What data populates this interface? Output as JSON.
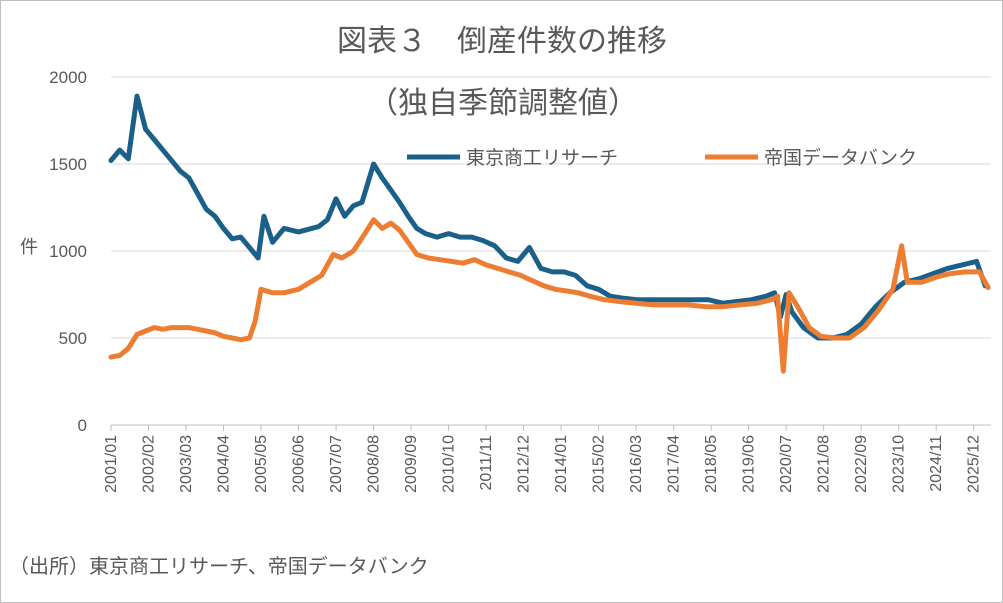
{
  "title": "図表３　倒産件数の推移",
  "subtitle": "（独自季節調整値）",
  "source_note": "（出所）東京商工リサーチ、帝国データバンク",
  "colors": {
    "tsr": "#1b6088",
    "tdb": "#ed7d31",
    "text": "#595959",
    "grid": "#d9d9d9"
  },
  "chart_data": {
    "type": "line",
    "ylabel": "件",
    "ylim": [
      0,
      2000
    ],
    "yticks": [
      "0",
      "500",
      "1000",
      "1500",
      "2000"
    ],
    "x_start": "2001-01",
    "x_end": "2026-06",
    "xticks": [
      "2001/01",
      "2002/02",
      "2003/03",
      "2004/04",
      "2005/05",
      "2006/06",
      "2007/07",
      "2008/08",
      "2009/09",
      "2010/10",
      "2011/11",
      "2012/12",
      "2014/01",
      "2015/02",
      "2016/03",
      "2017/04",
      "2018/05",
      "2019/06",
      "2020/07",
      "2021/08",
      "2022/09",
      "2023/10",
      "2024/11",
      "2025/12"
    ],
    "legend": "top-right",
    "series": [
      {
        "name": "東京商工リサーチ",
        "color": "#1b6088",
        "points": [
          [
            "2001-01",
            1520
          ],
          [
            "2001-04",
            1580
          ],
          [
            "2001-07",
            1530
          ],
          [
            "2001-10",
            1890
          ],
          [
            "2002-01",
            1700
          ],
          [
            "2002-04",
            1640
          ],
          [
            "2002-07",
            1580
          ],
          [
            "2002-10",
            1520
          ],
          [
            "2003-01",
            1460
          ],
          [
            "2003-04",
            1420
          ],
          [
            "2003-07",
            1330
          ],
          [
            "2003-10",
            1240
          ],
          [
            "2004-01",
            1200
          ],
          [
            "2004-04",
            1130
          ],
          [
            "2004-07",
            1070
          ],
          [
            "2004-10",
            1080
          ],
          [
            "2005-01",
            1020
          ],
          [
            "2005-04",
            960
          ],
          [
            "2005-06",
            1200
          ],
          [
            "2005-09",
            1050
          ],
          [
            "2006-01",
            1130
          ],
          [
            "2006-06",
            1110
          ],
          [
            "2007-01",
            1140
          ],
          [
            "2007-04",
            1180
          ],
          [
            "2007-07",
            1300
          ],
          [
            "2007-10",
            1200
          ],
          [
            "2008-01",
            1260
          ],
          [
            "2008-04",
            1280
          ],
          [
            "2008-08",
            1500
          ],
          [
            "2008-11",
            1420
          ],
          [
            "2009-02",
            1350
          ],
          [
            "2009-05",
            1280
          ],
          [
            "2009-08",
            1200
          ],
          [
            "2009-11",
            1130
          ],
          [
            "2010-02",
            1100
          ],
          [
            "2010-06",
            1080
          ],
          [
            "2010-10",
            1100
          ],
          [
            "2011-02",
            1080
          ],
          [
            "2011-06",
            1080
          ],
          [
            "2011-10",
            1060
          ],
          [
            "2012-02",
            1030
          ],
          [
            "2012-06",
            960
          ],
          [
            "2012-10",
            940
          ],
          [
            "2013-02",
            1020
          ],
          [
            "2013-06",
            900
          ],
          [
            "2013-10",
            880
          ],
          [
            "2014-02",
            880
          ],
          [
            "2014-06",
            860
          ],
          [
            "2014-10",
            800
          ],
          [
            "2015-02",
            780
          ],
          [
            "2015-06",
            740
          ],
          [
            "2015-10",
            730
          ],
          [
            "2016-03",
            720
          ],
          [
            "2016-08",
            720
          ],
          [
            "2017-01",
            720
          ],
          [
            "2017-06",
            720
          ],
          [
            "2017-11",
            720
          ],
          [
            "2018-04",
            720
          ],
          [
            "2018-09",
            700
          ],
          [
            "2019-02",
            710
          ],
          [
            "2019-07",
            720
          ],
          [
            "2019-12",
            740
          ],
          [
            "2020-03",
            760
          ],
          [
            "2020-05",
            620
          ],
          [
            "2020-07",
            750
          ],
          [
            "2020-09",
            650
          ],
          [
            "2021-01",
            560
          ],
          [
            "2021-06",
            500
          ],
          [
            "2021-11",
            500
          ],
          [
            "2022-04",
            520
          ],
          [
            "2022-09",
            580
          ],
          [
            "2023-02",
            680
          ],
          [
            "2023-07",
            760
          ],
          [
            "2023-12",
            820
          ],
          [
            "2024-05",
            840
          ],
          [
            "2024-10",
            870
          ],
          [
            "2025-03",
            900
          ],
          [
            "2025-08",
            920
          ],
          [
            "2026-01",
            940
          ],
          [
            "2026-04",
            800
          ]
        ]
      },
      {
        "name": "帝国データバンク",
        "color": "#ed7d31",
        "points": [
          [
            "2001-01",
            390
          ],
          [
            "2001-04",
            400
          ],
          [
            "2001-07",
            440
          ],
          [
            "2001-10",
            520
          ],
          [
            "2002-01",
            540
          ],
          [
            "2002-04",
            560
          ],
          [
            "2002-07",
            550
          ],
          [
            "2002-10",
            560
          ],
          [
            "2003-01",
            560
          ],
          [
            "2003-04",
            560
          ],
          [
            "2003-07",
            550
          ],
          [
            "2003-10",
            540
          ],
          [
            "2004-01",
            530
          ],
          [
            "2004-04",
            510
          ],
          [
            "2004-07",
            500
          ],
          [
            "2004-10",
            490
          ],
          [
            "2005-01",
            500
          ],
          [
            "2005-03",
            600
          ],
          [
            "2005-05",
            780
          ],
          [
            "2005-09",
            760
          ],
          [
            "2006-01",
            760
          ],
          [
            "2006-06",
            780
          ],
          [
            "2006-10",
            820
          ],
          [
            "2007-02",
            860
          ],
          [
            "2007-06",
            980
          ],
          [
            "2007-09",
            960
          ],
          [
            "2008-01",
            1000
          ],
          [
            "2008-05",
            1100
          ],
          [
            "2008-08",
            1180
          ],
          [
            "2008-11",
            1130
          ],
          [
            "2009-02",
            1160
          ],
          [
            "2009-05",
            1120
          ],
          [
            "2009-08",
            1050
          ],
          [
            "2009-11",
            980
          ],
          [
            "2010-03",
            960
          ],
          [
            "2010-07",
            950
          ],
          [
            "2010-11",
            940
          ],
          [
            "2011-03",
            930
          ],
          [
            "2011-07",
            950
          ],
          [
            "2011-11",
            920
          ],
          [
            "2012-03",
            900
          ],
          [
            "2012-07",
            880
          ],
          [
            "2012-11",
            860
          ],
          [
            "2013-03",
            830
          ],
          [
            "2013-07",
            800
          ],
          [
            "2013-11",
            780
          ],
          [
            "2014-03",
            770
          ],
          [
            "2014-07",
            760
          ],
          [
            "2014-11",
            740
          ],
          [
            "2015-04",
            720
          ],
          [
            "2015-09",
            710
          ],
          [
            "2016-03",
            700
          ],
          [
            "2016-09",
            690
          ],
          [
            "2017-03",
            690
          ],
          [
            "2017-09",
            690
          ],
          [
            "2018-03",
            680
          ],
          [
            "2018-09",
            680
          ],
          [
            "2019-03",
            690
          ],
          [
            "2019-09",
            700
          ],
          [
            "2020-02",
            720
          ],
          [
            "2020-04",
            740
          ],
          [
            "2020-06",
            310
          ],
          [
            "2020-08",
            760
          ],
          [
            "2020-11",
            680
          ],
          [
            "2021-03",
            560
          ],
          [
            "2021-07",
            510
          ],
          [
            "2021-12",
            500
          ],
          [
            "2022-05",
            500
          ],
          [
            "2022-10",
            560
          ],
          [
            "2023-03",
            660
          ],
          [
            "2023-08",
            780
          ],
          [
            "2023-11",
            1030
          ],
          [
            "2024-01",
            820
          ],
          [
            "2024-06",
            820
          ],
          [
            "2024-11",
            850
          ],
          [
            "2025-04",
            870
          ],
          [
            "2025-09",
            880
          ],
          [
            "2026-02",
            880
          ],
          [
            "2026-05",
            790
          ]
        ]
      }
    ]
  }
}
